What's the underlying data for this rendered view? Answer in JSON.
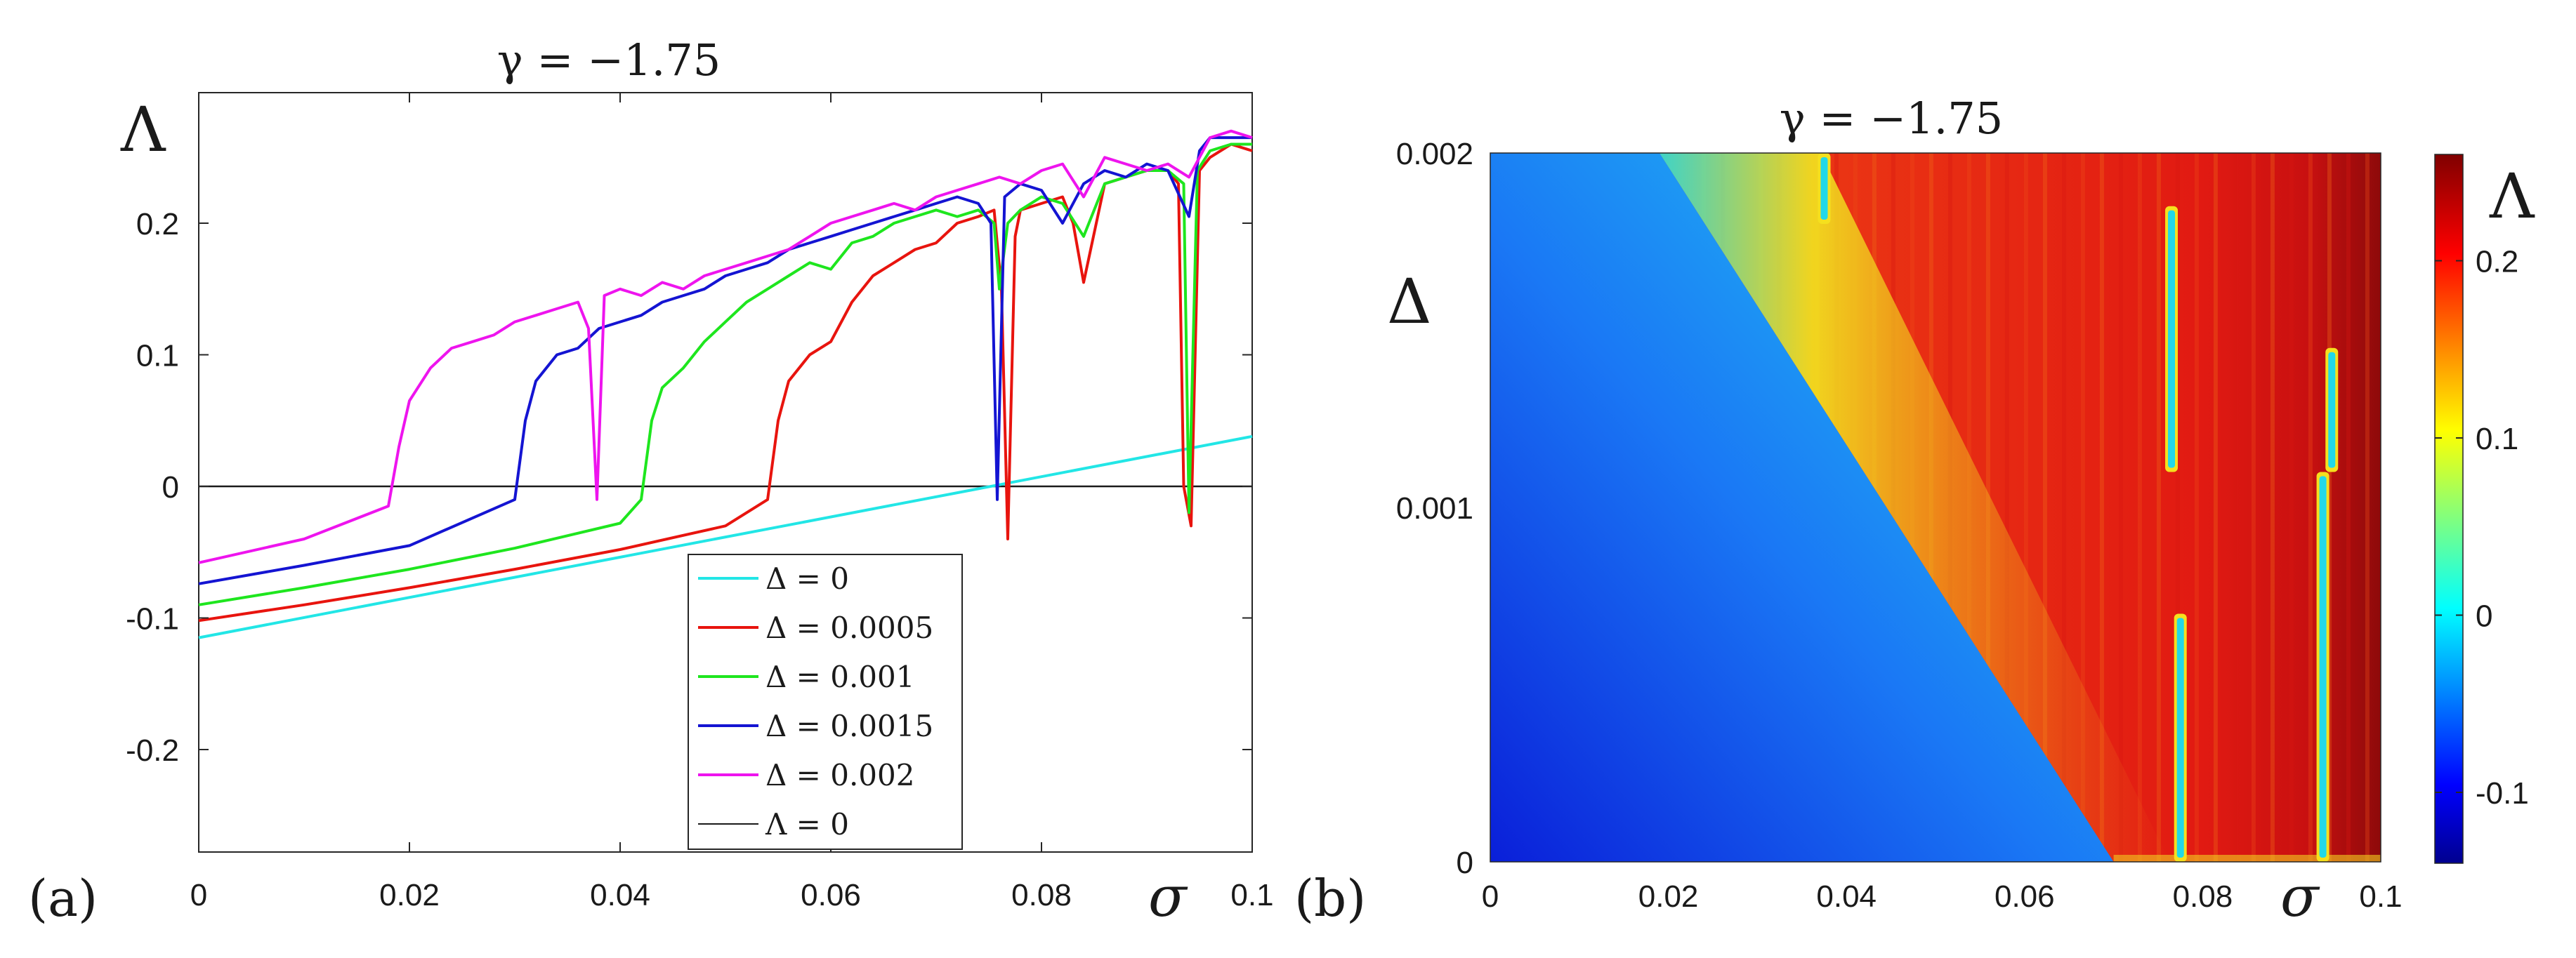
{
  "chart_data": [
    {
      "panel_label": "(a)",
      "type": "line",
      "title": "γ = −1.75",
      "xlabel": "σ",
      "ylabel": "Λ",
      "xlim": [
        0,
        0.1
      ],
      "ylim": [
        -0.28,
        0.3
      ],
      "xticks": [
        "0",
        "0.02",
        "0.04",
        "0.06",
        "0.08",
        "0.1"
      ],
      "yticks": [
        "-0.2",
        "-0.1",
        "0",
        "0.1",
        "0.2"
      ],
      "legend_position": "bottom-right",
      "series": [
        {
          "name": "Δ = 0",
          "color": "#22e6e6",
          "x": [
            0,
            0.1
          ],
          "y": [
            -0.115,
            0.038
          ]
        },
        {
          "name": "Δ = 0.0005",
          "color": "#e8140e",
          "x": [
            0,
            0.01,
            0.02,
            0.03,
            0.04,
            0.05,
            0.054,
            0.055,
            0.056,
            0.058,
            0.06,
            0.062,
            0.064,
            0.066,
            0.068,
            0.07,
            0.072,
            0.074,
            0.0755,
            0.0762,
            0.0768,
            0.0775,
            0.078,
            0.08,
            0.082,
            0.083,
            0.084,
            0.086,
            0.088,
            0.09,
            0.092,
            0.093,
            0.0935,
            0.0942,
            0.095,
            0.096,
            0.098,
            0.1
          ],
          "y": [
            -0.102,
            -0.09,
            -0.077,
            -0.063,
            -0.048,
            -0.03,
            -0.01,
            0.05,
            0.08,
            0.1,
            0.11,
            0.14,
            0.16,
            0.17,
            0.18,
            0.185,
            0.2,
            0.205,
            0.21,
            0.15,
            -0.04,
            0.19,
            0.21,
            0.215,
            0.22,
            0.2,
            0.155,
            0.23,
            0.235,
            0.24,
            0.24,
            0.23,
            0.0,
            -0.03,
            0.24,
            0.25,
            0.26,
            0.255
          ]
        },
        {
          "name": "Δ = 0.001",
          "color": "#1ee61e",
          "x": [
            0,
            0.01,
            0.02,
            0.03,
            0.04,
            0.042,
            0.043,
            0.044,
            0.046,
            0.048,
            0.05,
            0.052,
            0.054,
            0.056,
            0.058,
            0.06,
            0.062,
            0.064,
            0.066,
            0.068,
            0.07,
            0.072,
            0.074,
            0.0755,
            0.076,
            0.0768,
            0.078,
            0.08,
            0.082,
            0.084,
            0.086,
            0.088,
            0.09,
            0.092,
            0.0935,
            0.094,
            0.0948,
            0.096,
            0.098,
            0.1
          ],
          "y": [
            -0.09,
            -0.077,
            -0.063,
            -0.047,
            -0.028,
            -0.01,
            0.05,
            0.075,
            0.09,
            0.11,
            0.125,
            0.14,
            0.15,
            0.16,
            0.17,
            0.165,
            0.185,
            0.19,
            0.2,
            0.205,
            0.21,
            0.205,
            0.21,
            0.2,
            0.15,
            0.2,
            0.21,
            0.22,
            0.215,
            0.19,
            0.23,
            0.235,
            0.24,
            0.24,
            0.23,
            -0.02,
            0.24,
            0.255,
            0.26,
            0.26
          ]
        },
        {
          "name": "Δ = 0.0015",
          "color": "#1414d2",
          "x": [
            0,
            0.01,
            0.02,
            0.03,
            0.031,
            0.032,
            0.034,
            0.036,
            0.038,
            0.04,
            0.042,
            0.044,
            0.046,
            0.048,
            0.05,
            0.052,
            0.054,
            0.056,
            0.058,
            0.06,
            0.062,
            0.064,
            0.066,
            0.068,
            0.07,
            0.072,
            0.074,
            0.0752,
            0.0758,
            0.0765,
            0.078,
            0.08,
            0.082,
            0.084,
            0.086,
            0.088,
            0.09,
            0.092,
            0.094,
            0.095,
            0.096,
            0.098,
            0.1
          ],
          "y": [
            -0.074,
            -0.06,
            -0.045,
            -0.01,
            0.05,
            0.08,
            0.1,
            0.105,
            0.12,
            0.125,
            0.13,
            0.14,
            0.145,
            0.15,
            0.16,
            0.165,
            0.17,
            0.18,
            0.185,
            0.19,
            0.195,
            0.2,
            0.205,
            0.21,
            0.215,
            0.22,
            0.215,
            0.2,
            -0.01,
            0.22,
            0.23,
            0.225,
            0.2,
            0.23,
            0.24,
            0.235,
            0.245,
            0.24,
            0.205,
            0.255,
            0.265,
            0.265,
            0.265
          ]
        },
        {
          "name": "Δ = 0.002",
          "color": "#ee14ee",
          "x": [
            0,
            0.01,
            0.018,
            0.019,
            0.02,
            0.022,
            0.024,
            0.026,
            0.028,
            0.03,
            0.032,
            0.034,
            0.036,
            0.037,
            0.0378,
            0.0385,
            0.04,
            0.042,
            0.044,
            0.046,
            0.048,
            0.05,
            0.052,
            0.054,
            0.056,
            0.058,
            0.06,
            0.062,
            0.064,
            0.066,
            0.068,
            0.07,
            0.072,
            0.074,
            0.076,
            0.078,
            0.08,
            0.082,
            0.084,
            0.086,
            0.088,
            0.09,
            0.092,
            0.094,
            0.096,
            0.098,
            0.1
          ],
          "y": [
            -0.058,
            -0.04,
            -0.015,
            0.03,
            0.065,
            0.09,
            0.105,
            0.11,
            0.115,
            0.125,
            0.13,
            0.135,
            0.14,
            0.12,
            -0.01,
            0.145,
            0.15,
            0.145,
            0.155,
            0.15,
            0.16,
            0.165,
            0.17,
            0.175,
            0.18,
            0.19,
            0.2,
            0.205,
            0.21,
            0.215,
            0.21,
            0.22,
            0.225,
            0.23,
            0.235,
            0.23,
            0.24,
            0.245,
            0.22,
            0.25,
            0.245,
            0.24,
            0.245,
            0.235,
            0.265,
            0.27,
            0.265
          ]
        },
        {
          "name": "Λ = 0",
          "color": "#1a1a1a",
          "x": [
            0,
            0.1
          ],
          "y": [
            0,
            0
          ]
        }
      ]
    },
    {
      "panel_label": "(b)",
      "type": "heatmap",
      "title": "γ = −1.75",
      "xlabel": "σ",
      "ylabel": "Δ",
      "xlim": [
        0,
        0.1
      ],
      "ylim": [
        0,
        0.002
      ],
      "xticks": [
        "0",
        "0.02",
        "0.04",
        "0.06",
        "0.08",
        "0.1"
      ],
      "yticks": [
        "0",
        "0.001",
        "0.002"
      ],
      "colorbar": {
        "label": "Λ",
        "range": [
          -0.14,
          0.26
        ],
        "ticks": [
          "-0.1",
          "0",
          "0.1",
          "0.2"
        ]
      },
      "onset_boundary": {
        "sigma_at_delta_0": 0.07,
        "sigma_at_delta_0.002": 0.019
      },
      "dips": [
        {
          "sigma": 0.0375,
          "delta_range": [
            0.0018,
            0.002
          ]
        },
        {
          "sigma": 0.0765,
          "delta_range": [
            0.0011,
            0.00185
          ]
        },
        {
          "sigma": 0.0775,
          "delta_range": [
            0,
            0.0007
          ]
        },
        {
          "sigma": 0.0935,
          "delta_range": [
            0,
            0.0011
          ]
        },
        {
          "sigma": 0.0945,
          "delta_range": [
            0.0011,
            0.00145
          ]
        }
      ]
    }
  ]
}
